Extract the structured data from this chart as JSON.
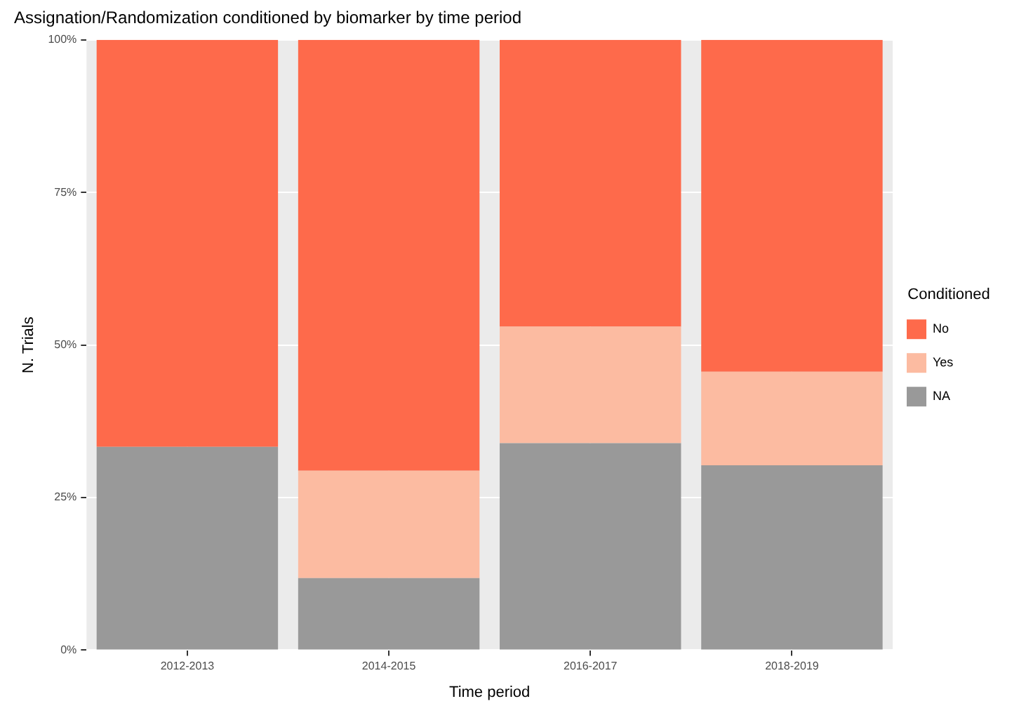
{
  "chart_data": {
    "type": "bar",
    "title": "Assignation/Randomization conditioned by biomarker by time period",
    "xlabel": "Time period",
    "ylabel": "N. Trials",
    "legend_title": "Conditioned",
    "categories": [
      "2012-2013",
      "2014-2015",
      "2016-2017",
      "2018-2019"
    ],
    "series": [
      {
        "name": "NA",
        "color": "#999999",
        "values": [
          33.3,
          11.8,
          33.9,
          30.3
        ]
      },
      {
        "name": "Yes",
        "color": "#fcbba1",
        "values": [
          0,
          17.6,
          19.1,
          15.3
        ]
      },
      {
        "name": "No",
        "color": "#fe6a4b",
        "values": [
          66.7,
          70.6,
          47.0,
          54.4
        ]
      }
    ],
    "stacked": true,
    "ylim": [
      0,
      100
    ],
    "yticks": [
      {
        "value": 0,
        "label": "0%"
      },
      {
        "value": 25,
        "label": "25%"
      },
      {
        "value": 50,
        "label": "50%"
      },
      {
        "value": 75,
        "label": "75%"
      },
      {
        "value": 100,
        "label": "100%"
      }
    ],
    "grid": true,
    "legend": "right"
  }
}
